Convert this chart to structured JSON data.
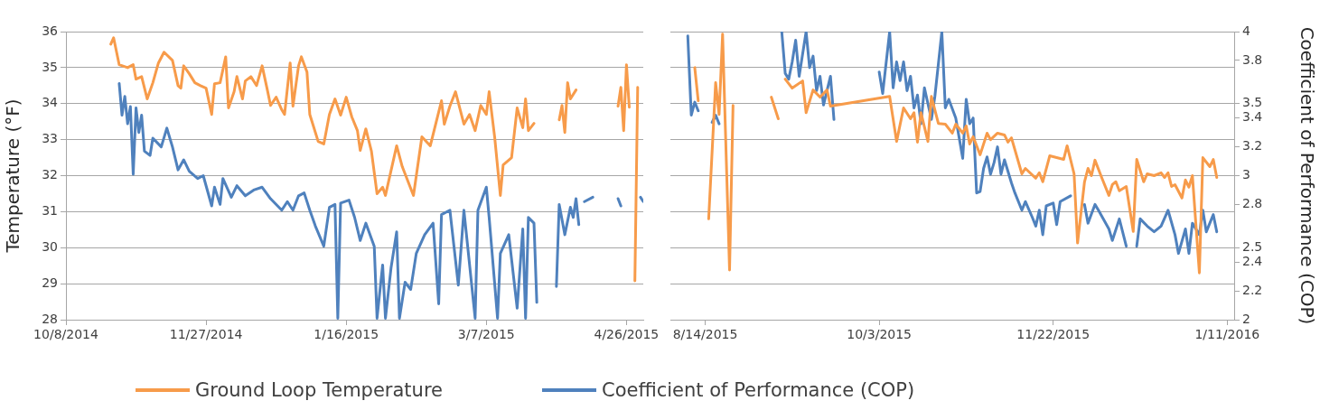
{
  "chart_data": [
    {
      "type": "line",
      "ylabel": "Temperature (°F)",
      "xlim": [
        "2014-10-08",
        "2015-05-02"
      ],
      "xticks": [
        {
          "value": "2014-10-08",
          "label": "10/8/2014"
        },
        {
          "value": "2014-11-27",
          "label": "11/27/2014"
        },
        {
          "value": "2015-01-16",
          "label": "1/16/2015"
        },
        {
          "value": "2015-03-07",
          "label": "3/7/2015"
        },
        {
          "value": "2015-04-26",
          "label": "4/26/2015"
        }
      ],
      "ylim": [
        28,
        36
      ],
      "yticks": [
        28,
        29,
        30,
        31,
        32,
        33,
        34,
        35,
        36
      ],
      "y2lim": [
        2,
        4
      ],
      "tick_labels": [
        "x",
        "y"
      ],
      "grid": "y",
      "legend": "bottom",
      "marker": "none",
      "series": [
        {
          "name": "Ground Loop Temperature",
          "color": "#f79b4a",
          "x": [
            "2014-10-24",
            "2014-10-25",
            "2014-10-27",
            "2014-10-30",
            "2014-11-01",
            "2014-11-02",
            "2014-11-04",
            "2014-11-06",
            "2014-11-08",
            "2014-11-10",
            "2014-11-12",
            "2014-11-15",
            "2014-11-17",
            "2014-11-18",
            "2014-11-19",
            "2014-11-21",
            "2014-11-23",
            "2014-11-25",
            "2014-11-27",
            "2014-11-29",
            "2014-11-30",
            "2014-12-02",
            "2014-12-04",
            "2014-12-05",
            "2014-12-07",
            "2014-12-08",
            "2014-12-10",
            "2014-12-11",
            "2014-12-13",
            "2014-12-15",
            "2014-12-17",
            "2014-12-19",
            "2014-12-20",
            "2014-12-22",
            "2014-12-24",
            "2014-12-25",
            "2014-12-27",
            "2014-12-28",
            "2014-12-30",
            "2014-12-31",
            "2015-01-02",
            "2015-01-03",
            "2015-01-06",
            "2015-01-08",
            "2015-01-10",
            "2015-01-12",
            "2015-01-14",
            "2015-01-16",
            "2015-01-18",
            "2015-01-20",
            "2015-01-21",
            "2015-01-23",
            "2015-01-25",
            "2015-01-27",
            "2015-01-29",
            "2015-01-30",
            "2015-02-03",
            "2015-02-05",
            "2015-02-09",
            "2015-02-12",
            "2015-02-15",
            "2015-02-19",
            "2015-02-20",
            "2015-02-22",
            "2015-02-24",
            "2015-02-27",
            "2015-03-01",
            "2015-03-03",
            "2015-03-05",
            "2015-03-07",
            "2015-03-08",
            "2015-03-10",
            "2015-03-12",
            "2015-03-13",
            "2015-03-16",
            "2015-03-18",
            "2015-03-20",
            "2015-03-21",
            "2015-03-22",
            "2015-03-24",
            "2015-03-28",
            "2015-04-02",
            "2015-04-03",
            "2015-04-04",
            "2015-04-05",
            "2015-04-06",
            "2015-04-08",
            "2015-04-15",
            "2015-04-23",
            "2015-04-24",
            "2015-04-25",
            "2015-04-26",
            "2015-04-27",
            "2015-04-28",
            "2015-04-29",
            "2015-04-30"
          ],
          "values": [
            35.65,
            35.83,
            35.08,
            35.0,
            35.08,
            34.68,
            34.75,
            34.13,
            34.58,
            35.13,
            35.43,
            35.2,
            34.5,
            34.43,
            35.05,
            34.83,
            34.58,
            34.5,
            34.43,
            33.7,
            34.55,
            34.58,
            35.3,
            33.88,
            34.33,
            34.75,
            34.13,
            34.63,
            34.75,
            34.5,
            35.05,
            34.33,
            33.95,
            34.18,
            33.83,
            33.7,
            35.13,
            33.93,
            35.05,
            35.3,
            34.88,
            33.7,
            32.95,
            32.88,
            33.7,
            34.13,
            33.68,
            34.18,
            33.63,
            33.25,
            32.7,
            33.3,
            32.68,
            31.5,
            31.68,
            31.45,
            32.83,
            32.25,
            31.45,
            33.08,
            32.83,
            34.08,
            33.43,
            33.93,
            34.33,
            33.43,
            33.7,
            33.25,
            33.95,
            33.7,
            34.33,
            33.05,
            31.45,
            32.3,
            32.5,
            33.88,
            33.33,
            34.13,
            33.25,
            33.45,
            null,
            33.55,
            33.95,
            33.2,
            34.58,
            34.13,
            34.38,
            null,
            33.93,
            34.45,
            33.25,
            35.08,
            33.9,
            null,
            29.08,
            34.45
          ]
        },
        {
          "name": "Coefficient of Performance (COP)",
          "color": "#4f81bd",
          "axis": "y2",
          "x": [
            "2014-10-27",
            "2014-10-28",
            "2014-10-29",
            "2014-10-30",
            "2014-10-31",
            "2014-11-01",
            "2014-11-02",
            "2014-11-03",
            "2014-11-04",
            "2014-11-05",
            "2014-11-07",
            "2014-11-08",
            "2014-11-11",
            "2014-11-13",
            "2014-11-15",
            "2014-11-17",
            "2014-11-19",
            "2014-11-21",
            "2014-11-24",
            "2014-11-26",
            "2014-11-29",
            "2014-11-30",
            "2014-12-02",
            "2014-12-03",
            "2014-12-06",
            "2014-12-08",
            "2014-12-11",
            "2014-12-14",
            "2014-12-17",
            "2014-12-20",
            "2014-12-24",
            "2014-12-26",
            "2014-12-28",
            "2014-12-30",
            "2015-01-01",
            "2015-01-03",
            "2015-01-05",
            "2015-01-08",
            "2015-01-10",
            "2015-01-12",
            "2015-01-13",
            "2015-01-14",
            "2015-01-17",
            "2015-01-19",
            "2015-01-21",
            "2015-01-23",
            "2015-01-26",
            "2015-01-27",
            "2015-01-29",
            "2015-01-30",
            "2015-02-01",
            "2015-02-03",
            "2015-02-04",
            "2015-02-06",
            "2015-02-08",
            "2015-02-10",
            "2015-02-13",
            "2015-02-16",
            "2015-02-18",
            "2015-02-19",
            "2015-02-22",
            "2015-02-25",
            "2015-02-27",
            "2015-03-03",
            "2015-03-04",
            "2015-03-07",
            "2015-03-08",
            "2015-03-11",
            "2015-03-12",
            "2015-03-15",
            "2015-03-18",
            "2015-03-20",
            "2015-03-21",
            "2015-03-22",
            "2015-03-24",
            "2015-03-25",
            "2015-03-28",
            "2015-04-01",
            "2015-04-02",
            "2015-04-04",
            "2015-04-06",
            "2015-04-07",
            "2015-04-08",
            "2015-04-09",
            "2015-04-10",
            "2015-04-11",
            "2015-04-14",
            "2015-04-18",
            "2015-04-23",
            "2015-04-24",
            "2015-04-28",
            "2015-05-01",
            "2015-05-02"
          ],
          "values": [
            3.64,
            3.42,
            3.55,
            3.36,
            3.48,
            3.01,
            3.47,
            3.3,
            3.42,
            3.17,
            3.14,
            3.26,
            3.2,
            3.33,
            3.2,
            3.04,
            3.11,
            3.03,
            2.98,
            3.0,
            2.79,
            2.92,
            2.8,
            2.98,
            2.85,
            2.93,
            2.86,
            2.9,
            2.92,
            2.84,
            2.76,
            2.82,
            2.76,
            2.86,
            2.88,
            2.76,
            2.65,
            2.51,
            2.78,
            2.8,
            2.01,
            2.81,
            2.83,
            2.71,
            2.55,
            2.67,
            2.51,
            2.01,
            2.38,
            2.01,
            2.36,
            2.61,
            2.01,
            2.26,
            2.21,
            2.46,
            2.59,
            2.67,
            2.11,
            2.73,
            2.76,
            2.24,
            2.76,
            2.01,
            2.76,
            2.92,
            2.71,
            2.01,
            2.46,
            2.59,
            2.08,
            2.63,
            2.01,
            2.71,
            2.67,
            2.12,
            null,
            2.23,
            2.8,
            2.59,
            2.78,
            2.71,
            2.84,
            2.66,
            null,
            2.82,
            2.85,
            null,
            2.84,
            2.79,
            null,
            2.85,
            2.82
          ]
        }
      ]
    },
    {
      "type": "line",
      "y2label": "Coefficient of Performance (COP)",
      "xlim": [
        "2015-08-04",
        "2016-01-13"
      ],
      "xticks": [
        {
          "value": "2015-08-14",
          "label": "8/14/2015"
        },
        {
          "value": "2015-10-03",
          "label": "10/3/2015"
        },
        {
          "value": "2015-11-22",
          "label": "11/22/2015"
        },
        {
          "value": "2016-01-11",
          "label": "1/11/2016"
        }
      ],
      "ylim": [
        28,
        36
      ],
      "tick_labels": [
        "x",
        "y2"
      ],
      "y2lim": [
        2,
        4
      ],
      "y2ticks": [
        2,
        2.2,
        2.4,
        2.5,
        2.8,
        3,
        3.2,
        3.4,
        3.5,
        3.8,
        4
      ],
      "grid": "y",
      "marker": "none",
      "series": [
        {
          "color": "#f79b4a",
          "x": [
            "2015-08-11",
            "2015-08-12",
            "2015-08-13",
            "2015-08-15",
            "2015-08-17",
            "2015-08-18",
            "2015-08-19",
            "2015-08-21",
            "2015-08-22",
            "2015-08-27",
            "2015-09-02",
            "2015-09-04",
            "2015-09-05",
            "2015-09-06",
            "2015-09-08",
            "2015-09-11",
            "2015-09-12",
            "2015-09-14",
            "2015-09-16",
            "2015-09-18",
            "2015-09-19",
            "2015-10-06",
            "2015-10-08",
            "2015-10-10",
            "2015-10-12",
            "2015-10-13",
            "2015-10-14",
            "2015-10-15",
            "2015-10-17",
            "2015-10-18",
            "2015-10-20",
            "2015-10-22",
            "2015-10-24",
            "2015-10-25",
            "2015-10-27",
            "2015-10-28",
            "2015-10-29",
            "2015-10-30",
            "2015-11-01",
            "2015-11-03",
            "2015-11-04",
            "2015-11-06",
            "2015-11-08",
            "2015-11-09",
            "2015-11-10",
            "2015-11-13",
            "2015-11-14",
            "2015-11-17",
            "2015-11-18",
            "2015-11-19",
            "2015-11-21",
            "2015-11-25",
            "2015-11-26",
            "2015-11-28",
            "2015-11-29",
            "2015-12-01",
            "2015-12-02",
            "2015-12-03",
            "2015-12-04",
            "2015-12-06",
            "2015-12-08",
            "2015-12-09",
            "2015-12-10",
            "2015-12-11",
            "2015-12-13",
            "2015-12-15",
            "2015-12-16",
            "2015-12-18",
            "2015-12-19",
            "2015-12-21",
            "2015-12-23",
            "2015-12-24",
            "2015-12-25",
            "2015-12-26",
            "2015-12-27",
            "2015-12-29",
            "2015-12-30",
            "2015-12-31",
            "2016-01-01",
            "2016-01-03",
            "2016-01-04",
            "2016-01-06",
            "2016-01-07",
            "2016-01-08"
          ],
          "values": [
            35.0,
            34.08,
            null,
            30.8,
            34.58,
            33.7,
            35.93,
            29.38,
            33.95,
            null,
            34.18,
            33.58,
            null,
            34.68,
            34.43,
            34.63,
            33.75,
            34.38,
            34.18,
            34.38,
            33.93,
            34.2,
            32.95,
            33.88,
            33.58,
            33.75,
            32.93,
            33.75,
            32.95,
            34.2,
            33.45,
            33.43,
            33.18,
            33.43,
            33.18,
            33.38,
            32.88,
            33.08,
            32.58,
            33.18,
            33.0,
            33.18,
            33.13,
            32.93,
            33.05,
            32.05,
            32.2,
            31.93,
            32.08,
            31.83,
            32.55,
            32.45,
            32.83,
            32.05,
            30.13,
            31.83,
            32.2,
            32.0,
            32.43,
            31.93,
            31.45,
            31.75,
            31.83,
            31.58,
            31.7,
            30.45,
            32.45,
            31.83,
            32.05,
            32.0,
            32.08,
            31.95,
            32.08,
            31.7,
            31.75,
            31.38,
            31.88,
            31.68,
            32.0,
            29.3,
            32.5,
            32.25,
            32.45,
            31.95
          ]
        },
        {
          "color": "#4f81bd",
          "axis": "y2",
          "x": [
            "2015-08-09",
            "2015-08-10",
            "2015-08-11",
            "2015-08-12",
            "2015-08-14",
            "2015-08-16",
            "2015-08-17",
            "2015-08-18",
            "2015-08-25",
            "2015-09-05",
            "2015-09-06",
            "2015-09-07",
            "2015-09-08",
            "2015-09-09",
            "2015-09-10",
            "2015-09-12",
            "2015-09-13",
            "2015-09-14",
            "2015-09-15",
            "2015-09-16",
            "2015-09-17",
            "2015-09-19",
            "2015-09-20",
            "2015-09-28",
            "2015-10-03",
            "2015-10-04",
            "2015-10-06",
            "2015-10-07",
            "2015-10-08",
            "2015-10-09",
            "2015-10-10",
            "2015-10-11",
            "2015-10-12",
            "2015-10-13",
            "2015-10-14",
            "2015-10-15",
            "2015-10-16",
            "2015-10-18",
            "2015-10-19",
            "2015-10-21",
            "2015-10-22",
            "2015-10-23",
            "2015-10-25",
            "2015-10-26",
            "2015-10-27",
            "2015-10-28",
            "2015-10-29",
            "2015-10-30",
            "2015-10-31",
            "2015-11-01",
            "2015-11-02",
            "2015-11-03",
            "2015-11-04",
            "2015-11-05",
            "2015-11-06",
            "2015-11-07",
            "2015-11-08",
            "2015-11-10",
            "2015-11-11",
            "2015-11-13",
            "2015-11-14",
            "2015-11-16",
            "2015-11-17",
            "2015-11-18",
            "2015-11-19",
            "2015-11-20",
            "2015-11-22",
            "2015-11-23",
            "2015-11-24",
            "2015-11-27",
            "2015-11-29",
            "2015-12-01",
            "2015-12-02",
            "2015-12-04",
            "2015-12-05",
            "2015-12-08",
            "2015-12-09",
            "2015-12-11",
            "2015-12-13",
            "2015-12-15",
            "2015-12-16",
            "2015-12-17",
            "2015-12-19",
            "2015-12-21",
            "2015-12-23",
            "2015-12-25",
            "2015-12-27",
            "2015-12-28",
            "2015-12-30",
            "2015-12-31",
            "2016-01-01",
            "2016-01-03",
            "2016-01-04",
            "2016-01-05",
            "2016-01-07",
            "2016-01-08"
          ],
          "values": [
            3.97,
            3.42,
            3.51,
            3.45,
            null,
            3.37,
            3.42,
            3.36,
            null,
            4.0,
            3.71,
            3.67,
            3.79,
            3.94,
            3.69,
            4.0,
            3.75,
            3.83,
            3.59,
            3.69,
            3.49,
            3.69,
            3.39,
            null,
            3.72,
            3.57,
            4.0,
            3.61,
            3.79,
            3.66,
            3.79,
            3.59,
            3.69,
            3.47,
            3.56,
            3.36,
            3.61,
            3.39,
            3.55,
            4.0,
            3.47,
            3.53,
            3.4,
            3.26,
            3.12,
            3.53,
            3.36,
            3.4,
            2.88,
            2.89,
            3.05,
            3.13,
            3.01,
            3.09,
            3.2,
            3.01,
            3.11,
            2.95,
            2.88,
            2.76,
            2.82,
            2.71,
            2.65,
            2.76,
            2.59,
            2.79,
            2.81,
            2.66,
            2.82,
            2.86,
            null,
            2.8,
            2.67,
            2.8,
            2.76,
            2.63,
            2.55,
            2.7,
            2.51,
            null,
            2.51,
            2.7,
            2.65,
            2.61,
            2.65,
            2.76,
            2.59,
            2.46,
            2.63,
            2.46,
            2.67,
            2.59,
            2.76,
            2.61,
            2.73,
            2.61
          ]
        }
      ]
    }
  ]
}
